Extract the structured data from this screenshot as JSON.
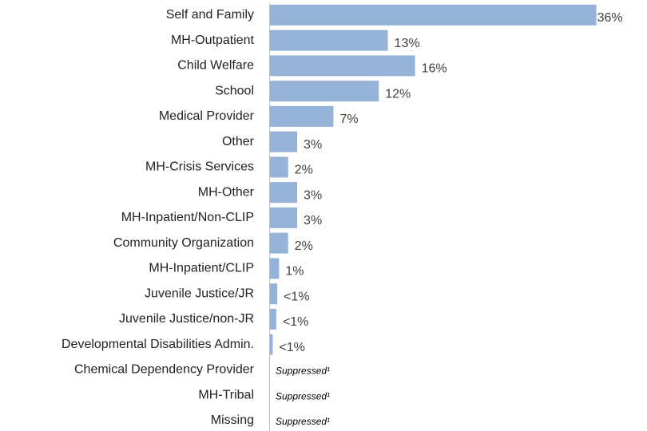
{
  "chart_data": {
    "type": "hbar",
    "categories": [
      "Self and Family",
      "MH-Outpatient",
      "Child Welfare",
      "School",
      "Medical Provider",
      "Other",
      "MH-Crisis Services",
      "MH-Other",
      "MH-Inpatient/Non-CLIP",
      "Community Organization",
      "MH-Inpatient/CLIP",
      "Juvenile Justice/JR",
      "Juvenile Justice/non-JR",
      "Developmental Disabilities Admin.",
      "Chemical Dependency Provider",
      "MH-Tribal",
      "Missing"
    ],
    "values": [
      36,
      13,
      16,
      12,
      7,
      3,
      2,
      3,
      3,
      2,
      1,
      0.8,
      0.7,
      0.3,
      null,
      null,
      null
    ],
    "value_labels": [
      "36%",
      "13%",
      "16%",
      "12%",
      "7%",
      "3%",
      "2%",
      "3%",
      "3%",
      "2%",
      "1%",
      "<1%",
      "<1%",
      "<1%",
      "Suppressed¹",
      "Suppressed¹",
      "Suppressed¹"
    ],
    "color": "#95b3d7",
    "xlim": [
      0,
      40
    ]
  }
}
